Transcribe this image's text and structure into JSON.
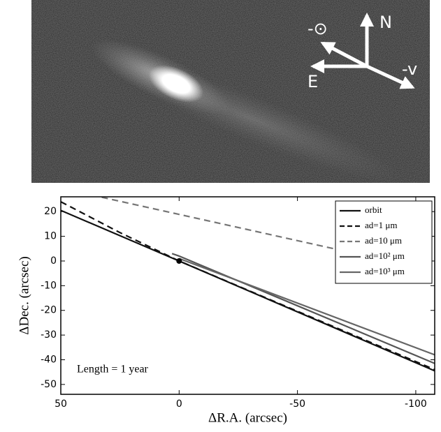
{
  "image": {
    "labels": [
      "-⊙",
      "N",
      "E",
      "-v"
    ]
  },
  "chart_data": {
    "type": "line",
    "xlabel": "ΔR.A. (arcsec)",
    "ylabel": "ΔDec. (arcsec)",
    "annotation": "Length = 1 year",
    "xlim": [
      50,
      -108
    ],
    "ylim": [
      -54,
      26
    ],
    "xticks": [
      50,
      0,
      -50,
      -100
    ],
    "yticks": [
      20,
      10,
      0,
      -10,
      -20,
      -30,
      -40,
      -50
    ],
    "legend": "upper right",
    "series": [
      {
        "name": "orbit",
        "color": "#111111",
        "dash": false,
        "x": [
          50,
          0,
          -108
        ],
        "y": [
          20.5,
          0,
          -44.5
        ]
      },
      {
        "name": "ad=1 μm",
        "color": "#111111",
        "dash": true,
        "x": [
          50,
          25,
          0,
          -108
        ],
        "y": [
          24,
          11.5,
          0,
          -44
        ]
      },
      {
        "name": "ad=10 μm",
        "color": "#777777",
        "dash": true,
        "x": [
          50,
          -70
        ],
        "y": [
          29.5,
          4
        ]
      },
      {
        "name": "ad=10² μm",
        "color": "#555555",
        "dash": false,
        "x": [
          3,
          0,
          -108
        ],
        "y": [
          3,
          2,
          -41.5
        ]
      },
      {
        "name": "ad=10³ μm",
        "color": "#666666",
        "dash": false,
        "x": [
          0,
          -108
        ],
        "y": [
          1,
          -38
        ]
      }
    ],
    "markers": {
      "x": [
        0
      ],
      "y": [
        0
      ]
    }
  }
}
